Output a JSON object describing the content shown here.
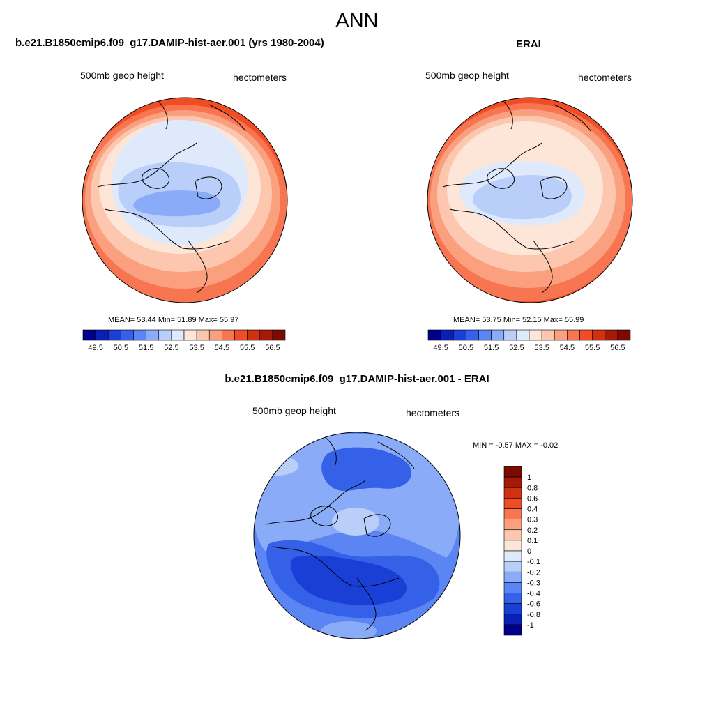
{
  "main_title": "ANN",
  "panels": [
    {
      "title": "b.e21.B1850cmip6.f09_g17.DAMIP-hist-aer.001 (yrs 1980-2004)",
      "left_label": "500mb geop height",
      "right_label": "hectometers",
      "stats": "MEAN=  53.44  Min=  51.89  Max=  55.97",
      "colorbar_labels": [
        "49.5",
        "50.5",
        "51.5",
        "52.5",
        "53.5",
        "54.5",
        "55.5",
        "56.5"
      ]
    },
    {
      "title": "ERAI",
      "left_label": "500mb geop height",
      "right_label": "hectometers",
      "stats": "MEAN=  53.75  Min=  52.15  Max=  55.99",
      "colorbar_labels": [
        "49.5",
        "50.5",
        "51.5",
        "52.5",
        "53.5",
        "54.5",
        "55.5",
        "56.5"
      ]
    },
    {
      "title": "b.e21.B1850cmip6.f09_g17.DAMIP-hist-aer.001 - ERAI",
      "left_label": "500mb geop height",
      "right_label": "hectometers",
      "stats": "MIN =  -0.57 MAX =  -0.02",
      "colorbar_labels": [
        "1",
        "0.8",
        "0.6",
        "0.4",
        "0.3",
        "0.2",
        "0.1",
        "0",
        "-0.1",
        "-0.2",
        "-0.3",
        "-0.4",
        "-0.6",
        "-0.8",
        "-1"
      ]
    }
  ],
  "colors": {
    "abs_scale": [
      "#00008b",
      "#0a1fb4",
      "#1a3fd6",
      "#3560e8",
      "#5b85f2",
      "#8aabf7",
      "#b9cef9",
      "#deeafb",
      "#fde6d8",
      "#fcc7ae",
      "#fba07f",
      "#f77550",
      "#ef4d25",
      "#d2310f",
      "#a51906",
      "#7a0a02"
    ],
    "diff_scale": [
      "#7a0a02",
      "#a51906",
      "#d2310f",
      "#ef4d25",
      "#f77550",
      "#fba07f",
      "#fcc7ae",
      "#fde6d8",
      "#deeafb",
      "#b9cef9",
      "#8aabf7",
      "#5b85f2",
      "#3560e8",
      "#1a3fd6",
      "#0a1fb4",
      "#00008b"
    ]
  }
}
